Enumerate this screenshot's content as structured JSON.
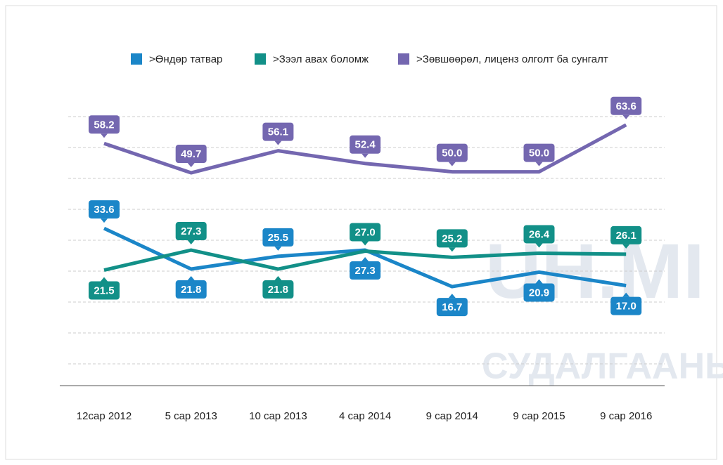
{
  "chart_data": {
    "type": "line",
    "categories": [
      "12сар 2012",
      "5 сар 2013",
      "10 сар 2013",
      "4 сар 2014",
      "9 сар 2014",
      "9 сар 2015",
      "9 сар 2016"
    ],
    "series": [
      {
        "name": ">Өндөр татвар",
        "color": "#1b86c8",
        "values": [
          33.6,
          21.8,
          25.5,
          27.3,
          16.7,
          20.9,
          17.0
        ],
        "value_labels": [
          "33.6",
          "21.8",
          "25.5",
          "27.3",
          "16.7",
          "20.9",
          "17.0"
        ]
      },
      {
        "name": ">Зээл авах боломж",
        "color": "#129088",
        "values": [
          21.5,
          27.3,
          21.8,
          27.0,
          25.2,
          26.4,
          26.1
        ],
        "value_labels": [
          "21.5",
          "27.3",
          "21.8",
          "27.0",
          "25.2",
          "26.4",
          "26.1"
        ]
      },
      {
        "name": ">Зөвшөөрөл, лиценз олголт ба сунгалт",
        "color": "#7467b0",
        "values": [
          58.2,
          49.7,
          56.1,
          52.4,
          50.0,
          50.0,
          63.6
        ],
        "value_labels": [
          "58.2",
          "49.7",
          "56.1",
          "52.4",
          "50.0",
          "50.0",
          "63.6"
        ]
      }
    ],
    "ylim": [
      -12,
      66
    ],
    "watermark": [
      "UH.MI",
      "СУДАЛГААНЫ С"
    ]
  }
}
